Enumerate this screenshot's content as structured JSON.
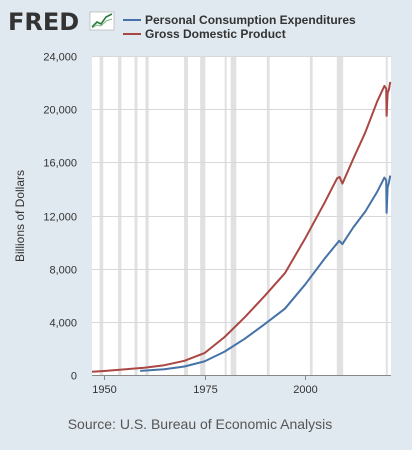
{
  "branding": {
    "logo_text": "FRED",
    "logo_icon": "trend-line-chart-icon"
  },
  "source": "Source: U.S. Bureau of Economic Analysis",
  "colors": {
    "background": "#e1e9f0",
    "plot_background": "#ffffff",
    "recession_band": "#e1e1e1",
    "pce_line": "#4572a7",
    "gdp_line": "#aa4643",
    "logo_dark": "#333333",
    "logo_accent": "#2b7b3c"
  },
  "chart_data": {
    "type": "line",
    "title": "",
    "xlabel": "",
    "ylabel": "Billions of Dollars",
    "xlim": [
      1947,
      2021.4
    ],
    "ylim": [
      0,
      24000
    ],
    "x_ticks": [
      1950,
      1975,
      2000
    ],
    "y_ticks": [
      0,
      4000,
      8000,
      12000,
      16000,
      20000,
      24000
    ],
    "y_tick_labels": [
      "0",
      "4,000",
      "8,000",
      "12,000",
      "16,000",
      "20,000",
      "24,000"
    ],
    "grid": "horizontal",
    "legend_position": "top-left",
    "recessions": [
      [
        1948.9,
        1949.8
      ],
      [
        1953.5,
        1954.3
      ],
      [
        1957.6,
        1958.3
      ],
      [
        1960.3,
        1961.1
      ],
      [
        1969.9,
        1970.9
      ],
      [
        1973.9,
        1975.2
      ],
      [
        1980.0,
        1980.5
      ],
      [
        1981.5,
        1982.9
      ],
      [
        1990.5,
        1991.2
      ],
      [
        2001.2,
        2001.9
      ],
      [
        2007.9,
        2009.5
      ],
      [
        2020.1,
        2020.4
      ]
    ],
    "series": [
      {
        "name": "Personal Consumption Expenditures",
        "color": "#4572a7",
        "points": [
          [
            1959.0,
            310
          ],
          [
            1965,
            440
          ],
          [
            1970,
            640
          ],
          [
            1975,
            1020
          ],
          [
            1980,
            1760
          ],
          [
            1985,
            2720
          ],
          [
            1990,
            3830
          ],
          [
            1995,
            4990
          ],
          [
            2000,
            6790
          ],
          [
            2005,
            8800
          ],
          [
            2008.5,
            10100
          ],
          [
            2009.3,
            9850
          ],
          [
            2012,
            11100
          ],
          [
            2015,
            12300
          ],
          [
            2018,
            13800
          ],
          [
            2019.75,
            14850
          ],
          [
            2020.2,
            14650
          ],
          [
            2020.3,
            12200
          ],
          [
            2020.55,
            14100
          ],
          [
            2020.9,
            14500
          ],
          [
            2021.2,
            15000
          ]
        ]
      },
      {
        "name": "Gross Domestic Product",
        "color": "#aa4643",
        "points": [
          [
            1947.0,
            245
          ],
          [
            1950,
            300
          ],
          [
            1955,
            420
          ],
          [
            1960,
            545
          ],
          [
            1965,
            740
          ],
          [
            1970,
            1070
          ],
          [
            1975,
            1650
          ],
          [
            1980,
            2860
          ],
          [
            1985,
            4340
          ],
          [
            1990,
            5960
          ],
          [
            1995,
            7660
          ],
          [
            2000,
            10250
          ],
          [
            2005,
            13040
          ],
          [
            2008.0,
            14800
          ],
          [
            2008.6,
            14900
          ],
          [
            2009.3,
            14400
          ],
          [
            2012,
            16250
          ],
          [
            2015,
            18250
          ],
          [
            2018,
            20600
          ],
          [
            2019.75,
            21750
          ],
          [
            2020.2,
            21550
          ],
          [
            2020.3,
            19500
          ],
          [
            2020.55,
            21200
          ],
          [
            2020.9,
            21500
          ],
          [
            2021.2,
            22050
          ]
        ]
      }
    ]
  }
}
